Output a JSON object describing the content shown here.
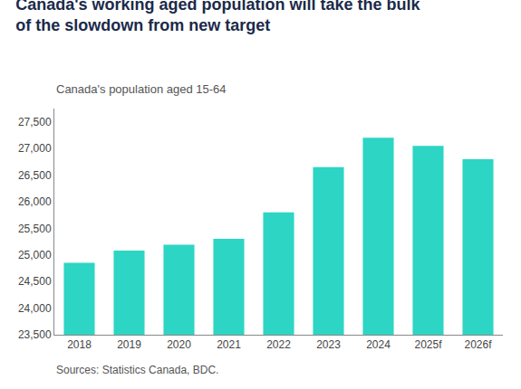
{
  "chart_data": {
    "type": "bar",
    "title": "Canada's working aged population will take the bulk\nof the slowdown from new target",
    "subtitle": "Canada's population aged 15-64",
    "source": "Sources: Statistics Canada, BDC.",
    "categories": [
      "2018",
      "2019",
      "2020",
      "2021",
      "2022",
      "2023",
      "2024",
      "2025f",
      "2026f"
    ],
    "values": [
      24850,
      25080,
      25190,
      25300,
      25800,
      26650,
      27200,
      27050,
      26800
    ],
    "color": "#2DD5C4",
    "ylim": [
      23500,
      27750
    ],
    "yticks": [
      {
        "value": 23500,
        "label": "23,500"
      },
      {
        "value": 24000,
        "label": "24,000"
      },
      {
        "value": 24500,
        "label": "24,500"
      },
      {
        "value": 25000,
        "label": "25,000"
      },
      {
        "value": 25500,
        "label": "25,500"
      },
      {
        "value": 26000,
        "label": "26,000"
      },
      {
        "value": 26500,
        "label": "26,500"
      },
      {
        "value": 27000,
        "label": "27,000"
      },
      {
        "value": 27500,
        "label": "27,500"
      }
    ],
    "grid": false
  }
}
